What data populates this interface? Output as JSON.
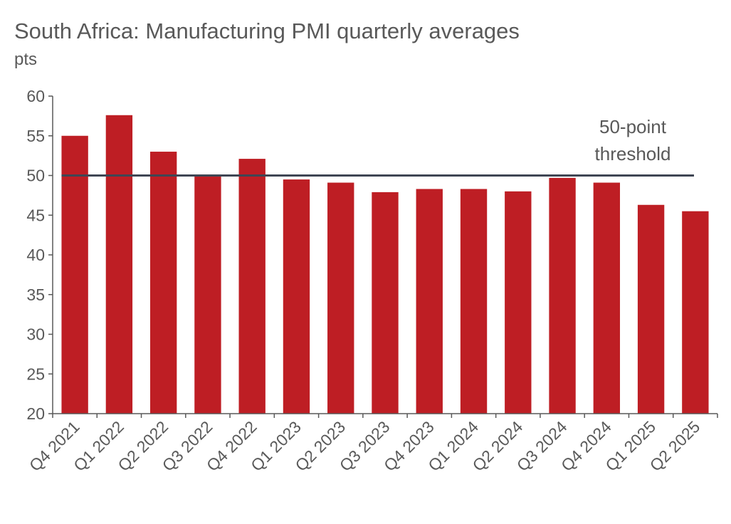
{
  "chart_data": {
    "type": "bar",
    "title": "South Africa: Manufacturing PMI quarterly averages",
    "ylabel": "pts",
    "xlabel": "",
    "categories": [
      "Q4 2021",
      "Q1 2022",
      "Q2 2022",
      "Q3 2022",
      "Q4 2022",
      "Q1 2023",
      "Q2 2023",
      "Q3 2023",
      "Q4 2023",
      "Q1 2024",
      "Q2 2024",
      "Q3 2024",
      "Q4 2024",
      "Q1 2025",
      "Q2 2025"
    ],
    "series": [
      {
        "values": [
          55.0,
          57.6,
          53.0,
          50.0,
          52.1,
          49.5,
          49.1,
          47.9,
          48.3,
          48.3,
          48.0,
          49.7,
          49.1,
          46.3,
          45.5
        ]
      }
    ],
    "ylim": [
      20,
      60
    ],
    "yticks": [
      "20",
      "25",
      "30",
      "35",
      "40",
      "45",
      "50",
      "55",
      "60"
    ],
    "reference_line": {
      "value": 50,
      "label_line1": "50-point",
      "label_line2": "threshold"
    },
    "grid": false,
    "legend": "none",
    "colors": {
      "bar": "#be1e24",
      "line": "#3f4654",
      "text": "#595959",
      "axis": "#595959"
    }
  }
}
